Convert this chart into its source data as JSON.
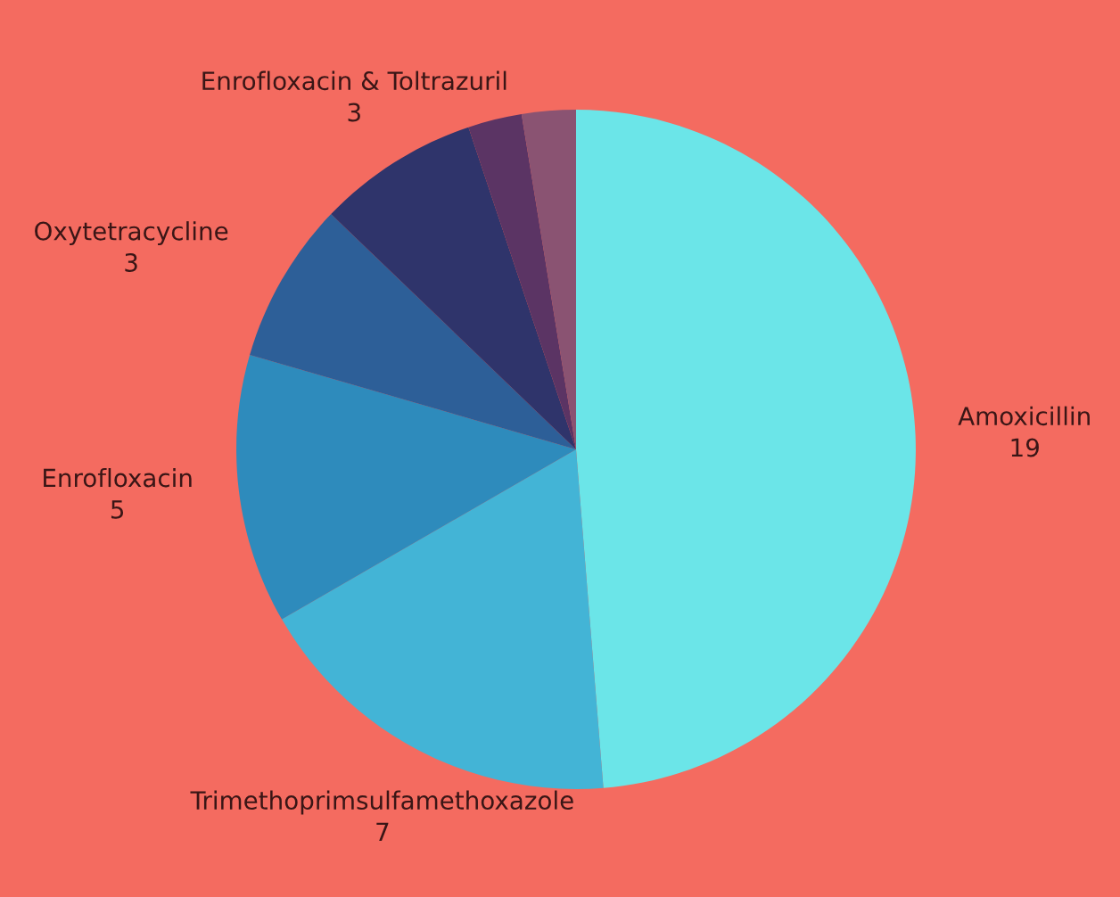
{
  "chart_data": {
    "type": "pie",
    "categories": [
      "Amoxicillin",
      "Trimethoprimsulfamethoxazole",
      "Enrofloxacin",
      "Oxytetracycline",
      "Enrofloxacin & Toltrazuril",
      null,
      null
    ],
    "values": [
      19,
      7,
      5,
      3,
      3,
      1,
      1
    ],
    "colors": [
      "#6be5e8",
      "#43b4d6",
      "#2e8bbc",
      "#2d5f98",
      "#2f346b",
      "#5b3464",
      "#8a5372"
    ],
    "value_labels": [
      "19",
      "7",
      "5",
      "3",
      "3",
      null,
      null
    ],
    "legend": false
  }
}
